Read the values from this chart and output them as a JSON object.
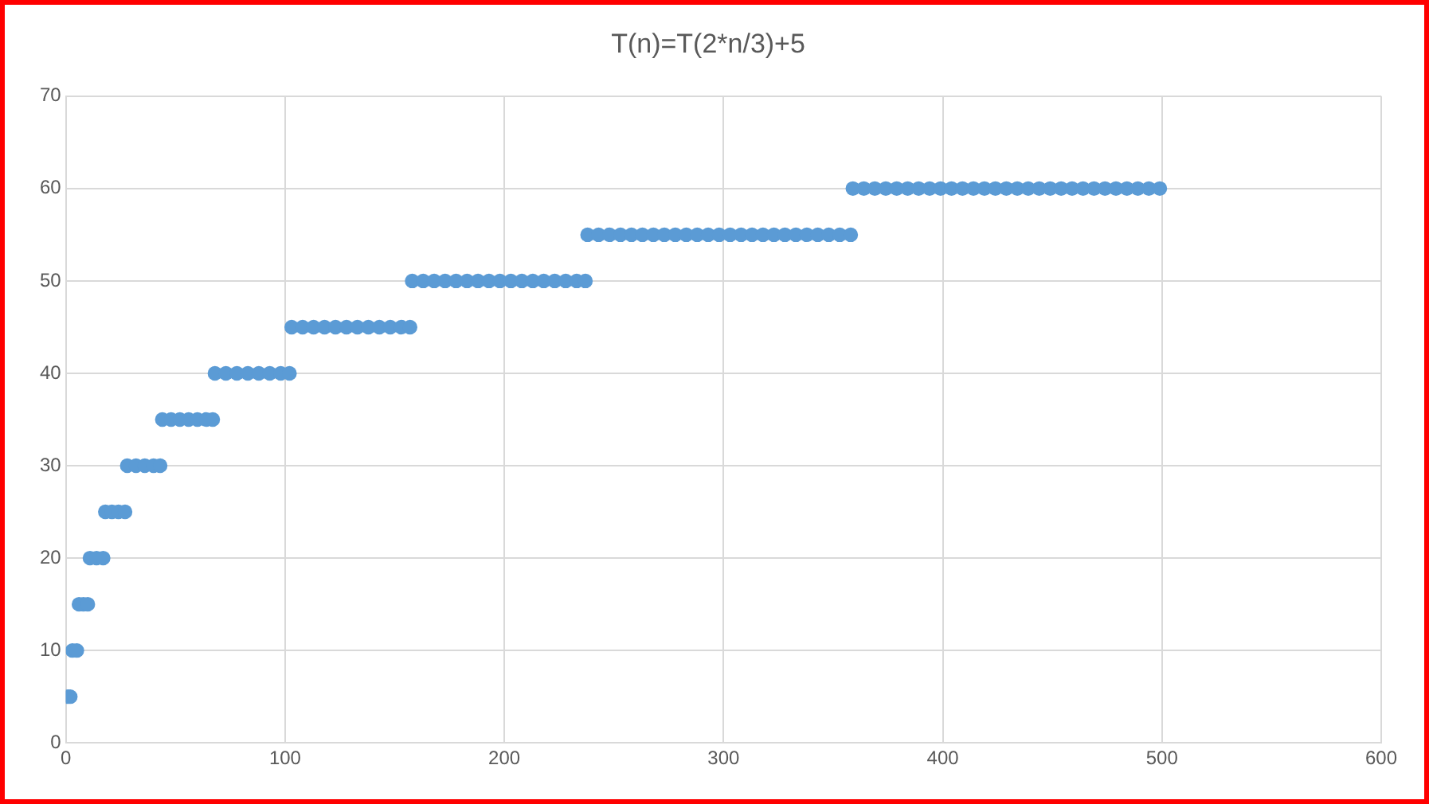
{
  "chart_data": {
    "type": "scatter",
    "title": "T(n)=T(2*n/3)+5",
    "marker": "circle",
    "grid": true,
    "legend": false,
    "xlim": [
      0,
      600
    ],
    "xticks": [
      0,
      100,
      200,
      300,
      400,
      500,
      600
    ],
    "ylim": [
      0,
      70
    ],
    "yticks": [
      0,
      10,
      20,
      30,
      40,
      50,
      60,
      70
    ],
    "series": [
      {
        "color": "#5b9bd5",
        "x": [
          1,
          2,
          3,
          5,
          6,
          8,
          10,
          11,
          14,
          17,
          18,
          21,
          24,
          27,
          28,
          32,
          36,
          40,
          43,
          44,
          48,
          52,
          56,
          60,
          64,
          67,
          68,
          73,
          78,
          83,
          88,
          93,
          98,
          102,
          103,
          108,
          113,
          118,
          123,
          128,
          133,
          138,
          143,
          148,
          153,
          157,
          158,
          163,
          168,
          173,
          178,
          183,
          188,
          193,
          198,
          203,
          208,
          213,
          218,
          223,
          228,
          233,
          237,
          238,
          243,
          248,
          253,
          258,
          263,
          268,
          273,
          278,
          283,
          288,
          293,
          298,
          303,
          308,
          313,
          318,
          323,
          328,
          333,
          338,
          343,
          348,
          353,
          358,
          359,
          364,
          369,
          374,
          379,
          384,
          389,
          394,
          399,
          404,
          409,
          414,
          419,
          424,
          429,
          434,
          439,
          444,
          449,
          454,
          459,
          464,
          469,
          474,
          479,
          484,
          489,
          494,
          499
        ],
        "values": [
          5,
          5,
          10,
          10,
          15,
          15,
          15,
          20,
          20,
          20,
          25,
          25,
          25,
          25,
          30,
          30,
          30,
          30,
          30,
          35,
          35,
          35,
          35,
          35,
          35,
          35,
          40,
          40,
          40,
          40,
          40,
          40,
          40,
          40,
          45,
          45,
          45,
          45,
          45,
          45,
          45,
          45,
          45,
          45,
          45,
          45,
          50,
          50,
          50,
          50,
          50,
          50,
          50,
          50,
          50,
          50,
          50,
          50,
          50,
          50,
          50,
          50,
          50,
          55,
          55,
          55,
          55,
          55,
          55,
          55,
          55,
          55,
          55,
          55,
          55,
          55,
          55,
          55,
          55,
          55,
          55,
          55,
          55,
          55,
          55,
          55,
          55,
          55,
          60,
          60,
          60,
          60,
          60,
          60,
          60,
          60,
          60,
          60,
          60,
          60,
          60,
          60,
          60,
          60,
          60,
          60,
          60,
          60,
          60,
          60,
          60,
          60,
          60,
          60,
          60,
          60,
          60
        ]
      }
    ]
  }
}
